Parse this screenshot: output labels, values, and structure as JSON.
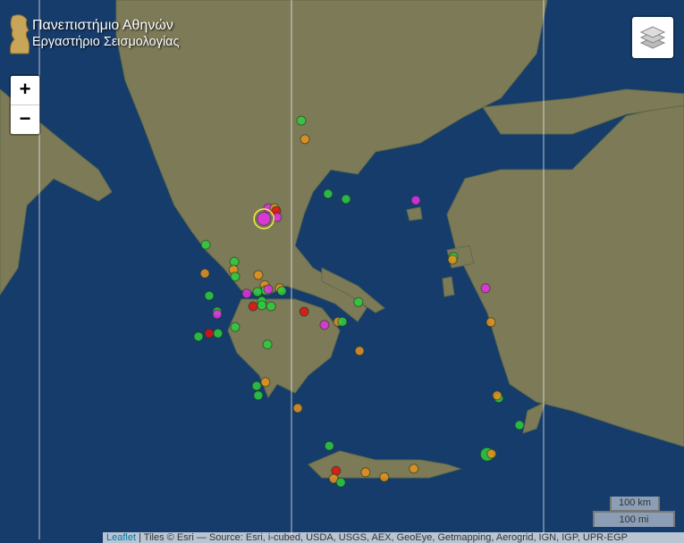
{
  "logo": {
    "line1": "Πανεπιστήμιο Αθηνών",
    "line2": "Εργαστήριο Σεισμολογίας"
  },
  "zoom": {
    "in_label": "+",
    "out_label": "−"
  },
  "layers_control": {
    "icon": "layers-icon"
  },
  "scale": {
    "km": "100 km",
    "mi": "100 mi"
  },
  "attribution": {
    "leaflet": "Leaflet",
    "text": " | Tiles © Esri — Source: Esri, i-cubed, USDA, USGS, AEX, GeoEye, Getmapping, Aerogrid, IGN, IGP, UPR-EGP"
  },
  "colors": {
    "green": "#2ecc40",
    "orange": "#e8901c",
    "magenta": "#e62ee6",
    "red": "#e01010",
    "selected_ring": "#f0f040",
    "sea": "#163c6c",
    "land": "#7d7a58"
  },
  "earthquakes": [
    {
      "lat": 41.78,
      "lon": 22.3,
      "c": "green"
    },
    {
      "lat": 41.43,
      "lon": 22.39,
      "c": "orange"
    },
    {
      "lat": 40.4,
      "lon": 22.97,
      "c": "green"
    },
    {
      "lat": 40.3,
      "lon": 23.42,
      "c": "green"
    },
    {
      "lat": 40.28,
      "lon": 25.17,
      "c": "magenta"
    },
    {
      "lat": 40.13,
      "lon": 21.47,
      "c": "magenta"
    },
    {
      "lat": 40.13,
      "lon": 21.63,
      "c": "orange"
    },
    {
      "lat": 40.08,
      "lon": 21.67,
      "c": "red"
    },
    {
      "lat": 39.96,
      "lon": 21.69,
      "c": "magenta"
    },
    {
      "lat": 39.93,
      "lon": 21.36,
      "c": "magenta",
      "big": true,
      "selected": true
    },
    {
      "lat": 39.44,
      "lon": 19.9,
      "c": "green"
    },
    {
      "lat": 39.12,
      "lon": 20.62,
      "c": "green"
    },
    {
      "lat": 38.97,
      "lon": 20.6,
      "c": "orange"
    },
    {
      "lat": 38.84,
      "lon": 20.64,
      "c": "green"
    },
    {
      "lat": 38.9,
      "lon": 19.88,
      "c": "orange"
    },
    {
      "lat": 38.87,
      "lon": 21.22,
      "c": "orange"
    },
    {
      "lat": 38.68,
      "lon": 21.38,
      "c": "orange"
    },
    {
      "lat": 38.58,
      "lon": 21.4,
      "c": "green"
    },
    {
      "lat": 38.6,
      "lon": 21.47,
      "c": "magenta"
    },
    {
      "lat": 38.62,
      "lon": 21.76,
      "c": "orange"
    },
    {
      "lat": 38.57,
      "lon": 21.81,
      "c": "green"
    },
    {
      "lat": 38.52,
      "lon": 20.93,
      "c": "magenta"
    },
    {
      "lat": 38.55,
      "lon": 21.2,
      "c": "green"
    },
    {
      "lat": 38.38,
      "lon": 21.31,
      "c": "green"
    },
    {
      "lat": 38.3,
      "lon": 21.31,
      "c": "green"
    },
    {
      "lat": 38.28,
      "lon": 21.54,
      "c": "green"
    },
    {
      "lat": 38.28,
      "lon": 21.09,
      "c": "red"
    },
    {
      "lat": 38.48,
      "lon": 19.99,
      "c": "green"
    },
    {
      "lat": 38.18,
      "lon": 20.19,
      "c": "green"
    },
    {
      "lat": 38.13,
      "lon": 20.19,
      "c": "magenta"
    },
    {
      "lat": 37.89,
      "lon": 20.64,
      "c": "green"
    },
    {
      "lat": 37.77,
      "lon": 19.99,
      "c": "red"
    },
    {
      "lat": 37.77,
      "lon": 20.21,
      "c": "green"
    },
    {
      "lat": 37.71,
      "lon": 19.72,
      "c": "green"
    },
    {
      "lat": 37.56,
      "lon": 21.45,
      "c": "green"
    },
    {
      "lat": 38.18,
      "lon": 22.37,
      "c": "red"
    },
    {
      "lat": 37.93,
      "lon": 22.88,
      "c": "magenta"
    },
    {
      "lat": 37.99,
      "lon": 23.22,
      "c": "orange"
    },
    {
      "lat": 37.99,
      "lon": 23.33,
      "c": "green"
    },
    {
      "lat": 38.36,
      "lon": 23.73,
      "c": "green"
    },
    {
      "lat": 37.44,
      "lon": 23.76,
      "c": "orange"
    },
    {
      "lat": 39.21,
      "lon": 26.11,
      "c": "green"
    },
    {
      "lat": 39.16,
      "lon": 26.09,
      "c": "orange"
    },
    {
      "lat": 38.62,
      "lon": 26.92,
      "c": "magenta"
    },
    {
      "lat": 37.98,
      "lon": 27.05,
      "c": "orange"
    },
    {
      "lat": 36.78,
      "lon": 21.18,
      "c": "green"
    },
    {
      "lat": 36.85,
      "lon": 21.4,
      "c": "orange"
    },
    {
      "lat": 36.6,
      "lon": 21.22,
      "c": "green"
    },
    {
      "lat": 36.36,
      "lon": 22.21,
      "c": "orange"
    },
    {
      "lat": 35.65,
      "lon": 23.0,
      "c": "green"
    },
    {
      "lat": 35.18,
      "lon": 23.17,
      "c": "red"
    },
    {
      "lat": 35.03,
      "lon": 23.11,
      "c": "orange"
    },
    {
      "lat": 34.96,
      "lon": 23.29,
      "c": "green"
    },
    {
      "lat": 35.15,
      "lon": 23.91,
      "c": "orange"
    },
    {
      "lat": 35.06,
      "lon": 24.38,
      "c": "orange"
    },
    {
      "lat": 35.22,
      "lon": 25.12,
      "c": "orange"
    },
    {
      "lat": 36.55,
      "lon": 27.25,
      "c": "green"
    },
    {
      "lat": 36.6,
      "lon": 27.21,
      "c": "orange"
    },
    {
      "lat": 36.04,
      "lon": 27.77,
      "c": "green"
    },
    {
      "lat": 35.49,
      "lon": 26.96,
      "c": "green",
      "big": true
    },
    {
      "lat": 35.5,
      "lon": 27.07,
      "c": "orange"
    }
  ]
}
